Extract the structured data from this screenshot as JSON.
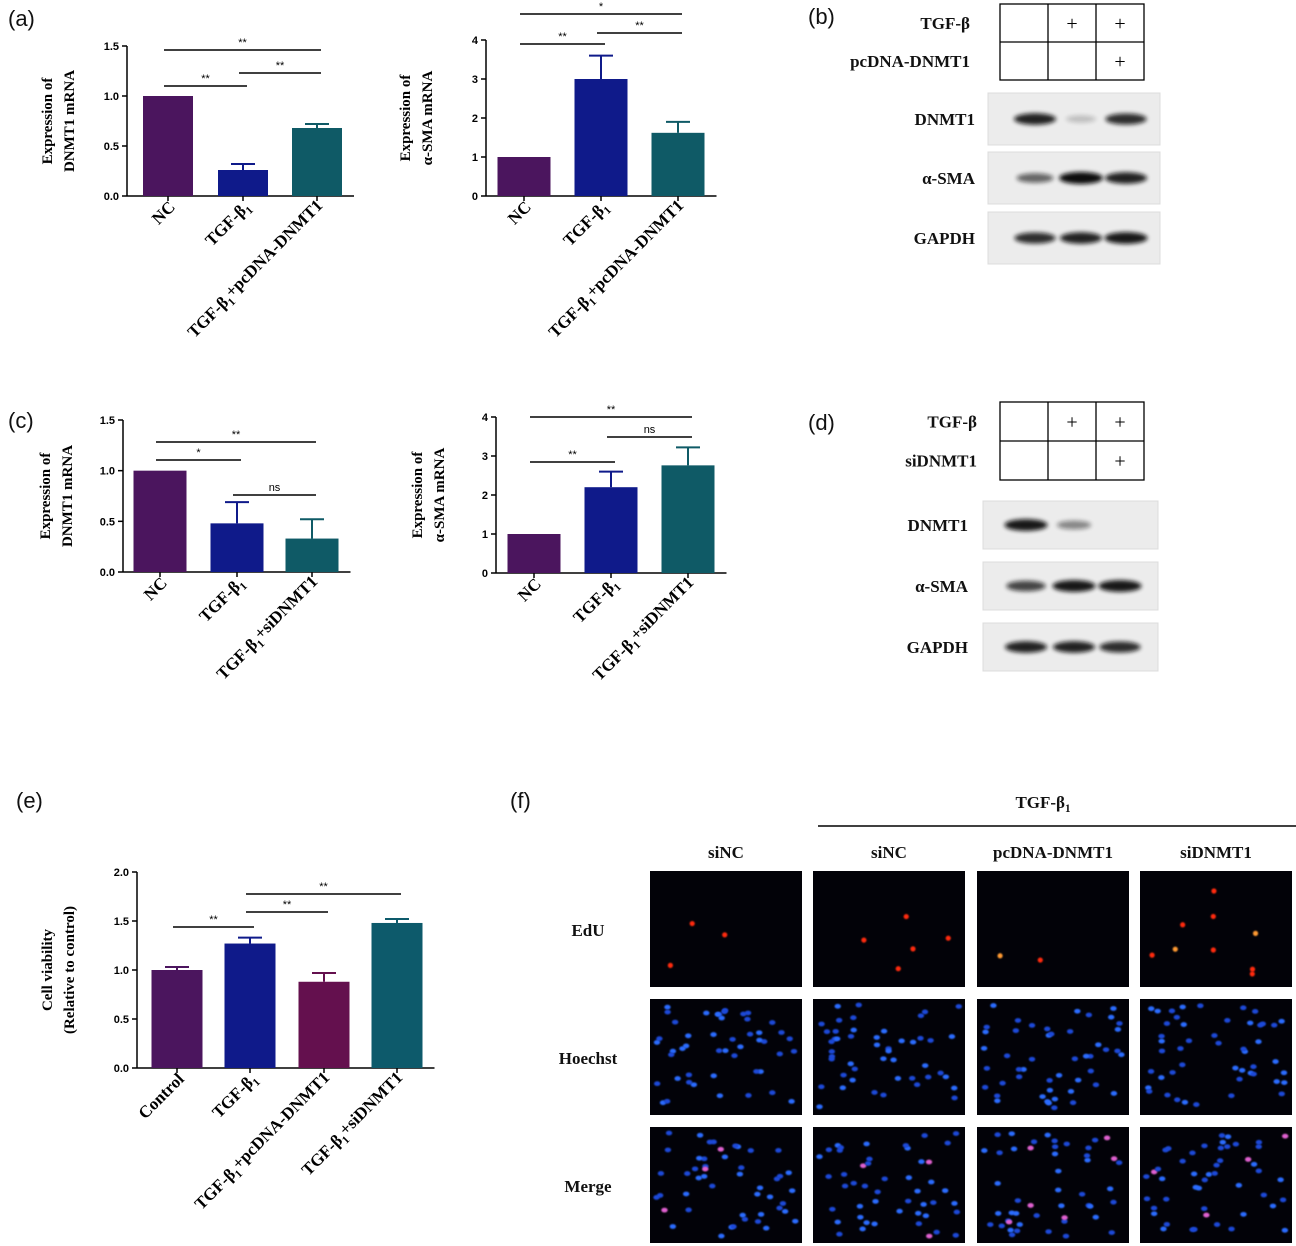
{
  "panels": {
    "a": "(a)",
    "b": "(b)",
    "c": "(c)",
    "d": "(d)",
    "e": "(e)",
    "f": "(f)"
  },
  "colors": {
    "purple": "#4b155e",
    "navy": "#0f1a8a",
    "teal": "#0f5a66",
    "magenta": "#64104e",
    "teal_e": "#0d5a6b"
  },
  "chart_data": [
    {
      "id": "a1",
      "type": "bar",
      "categories": [
        "NC",
        "TGF-β1",
        "TGF-β1+pcDNA-DNMT1"
      ],
      "values": [
        1.0,
        0.26,
        0.68
      ],
      "errors": [
        0,
        0.06,
        0.04
      ],
      "ylabel_lines": [
        "Expression of",
        "DNMT1 mRNA"
      ],
      "ylim": [
        0,
        1.5
      ],
      "yticks": [
        "0.0",
        "0.5",
        "1.0",
        "1.5"
      ],
      "significance": [
        {
          "from": 0,
          "to": 1,
          "label": "**"
        },
        {
          "from": 1,
          "to": 2,
          "label": "**"
        },
        {
          "from": 0,
          "to": 2,
          "label": "**"
        }
      ]
    },
    {
      "id": "a2",
      "type": "bar",
      "categories": [
        "NC",
        "TGF-β1",
        "TGF-β1+pcDNA-DNMT1"
      ],
      "values": [
        1.0,
        3.0,
        1.62
      ],
      "errors": [
        0,
        0.6,
        0.28
      ],
      "ylabel_lines": [
        "Expression of",
        "α-SMA mRNA"
      ],
      "ylim": [
        0,
        4
      ],
      "yticks": [
        "0",
        "1",
        "2",
        "3",
        "4"
      ],
      "significance": [
        {
          "from": 0,
          "to": 1,
          "label": "**"
        },
        {
          "from": 1,
          "to": 2,
          "label": "**"
        },
        {
          "from": 0,
          "to": 2,
          "label": "*"
        }
      ]
    },
    {
      "id": "c1",
      "type": "bar",
      "categories": [
        "NC",
        "TGF-β1",
        "TGF-β1+siDNMT1"
      ],
      "values": [
        1.0,
        0.48,
        0.33
      ],
      "errors": [
        0,
        0.21,
        0.19
      ],
      "ylabel_lines": [
        "Expression of",
        "DNMT1 mRNA"
      ],
      "ylim": [
        0,
        1.5
      ],
      "yticks": [
        "0.0",
        "0.5",
        "1.0",
        "1.5"
      ],
      "significance": [
        {
          "from": 0,
          "to": 1,
          "label": "*"
        },
        {
          "from": 1,
          "to": 2,
          "label": "ns"
        },
        {
          "from": 0,
          "to": 2,
          "label": "**"
        }
      ]
    },
    {
      "id": "c2",
      "type": "bar",
      "categories": [
        "NC",
        "TGF-β1",
        "TGF-β1+siDNMT1"
      ],
      "values": [
        1.0,
        2.2,
        2.76
      ],
      "errors": [
        0,
        0.4,
        0.46
      ],
      "ylabel_lines": [
        "Expression of",
        "α-SMA mRNA"
      ],
      "ylim": [
        0,
        4
      ],
      "yticks": [
        "0",
        "1",
        "2",
        "3",
        "4"
      ],
      "significance": [
        {
          "from": 0,
          "to": 1,
          "label": "**"
        },
        {
          "from": 1,
          "to": 2,
          "label": "ns"
        },
        {
          "from": 0,
          "to": 2,
          "label": "**"
        }
      ]
    },
    {
      "id": "e",
      "type": "bar",
      "categories": [
        "Control",
        "TGF-β1",
        "TGF-β1+pcDNA-DNMT1",
        "TGF-β1+siDNMT1"
      ],
      "values": [
        1.0,
        1.27,
        0.88,
        1.48
      ],
      "errors": [
        0.03,
        0.06,
        0.09,
        0.04
      ],
      "ylabel_lines": [
        "Cell viability",
        "(Relative to control)"
      ],
      "ylim": [
        0,
        2.0
      ],
      "yticks": [
        "0.0",
        "0.5",
        "1.0",
        "1.5",
        "2.0"
      ],
      "significance": [
        {
          "from": 0,
          "to": 1,
          "label": "**"
        },
        {
          "from": 1,
          "to": 2,
          "label": "**"
        },
        {
          "from": 1,
          "to": 3,
          "label": "**"
        }
      ]
    }
  ],
  "blot_b": {
    "row_labels": [
      "TGF-β",
      "pcDNA-DNMT1"
    ],
    "signs": [
      [
        "",
        "+",
        "+"
      ],
      [
        "",
        "",
        "+"
      ]
    ],
    "bands": [
      "DNMT1",
      "α-SMA",
      "GAPDH"
    ]
  },
  "blot_d": {
    "row_labels": [
      "TGF-β",
      "siDNMT1"
    ],
    "signs": [
      [
        "",
        "+",
        "+"
      ],
      [
        "",
        "",
        "+"
      ]
    ],
    "bands": [
      "DNMT1",
      "α-SMA",
      "GAPDH"
    ]
  },
  "panel_f": {
    "group_label": "TGF-β1",
    "columns": [
      "siNC",
      "siNC",
      "pcDNA-DNMT1",
      "siDNMT1"
    ],
    "rows": [
      "EdU",
      "Hoechst",
      "Merge"
    ]
  }
}
